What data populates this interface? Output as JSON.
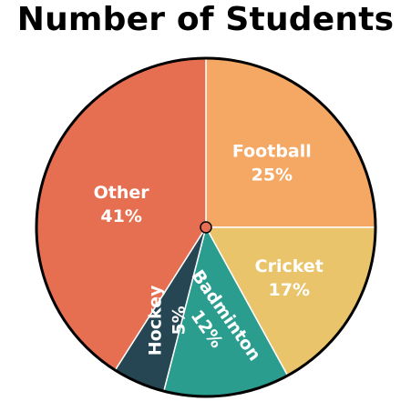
{
  "chart_data": {
    "type": "pie",
    "title": "Number of Students",
    "slices": [
      {
        "label": "Football",
        "value": 25,
        "value_label": "25%",
        "color": "#F5A863"
      },
      {
        "label": "Cricket",
        "value": 17,
        "value_label": "17%",
        "color": "#E9C46A"
      },
      {
        "label": "Badminton",
        "value": 12,
        "value_label": "12%",
        "color": "#2A9D8F"
      },
      {
        "label": "Hockey",
        "value": 5,
        "value_label": "5%",
        "color": "#264653"
      },
      {
        "label": "Other",
        "value": 41,
        "value_label": "41%",
        "color": "#E76F51"
      }
    ],
    "center_marker_color": "#E76F51",
    "outline_color": "#000000",
    "start_angle": "12 o'clock",
    "direction": "clockwise",
    "legend": "none"
  }
}
